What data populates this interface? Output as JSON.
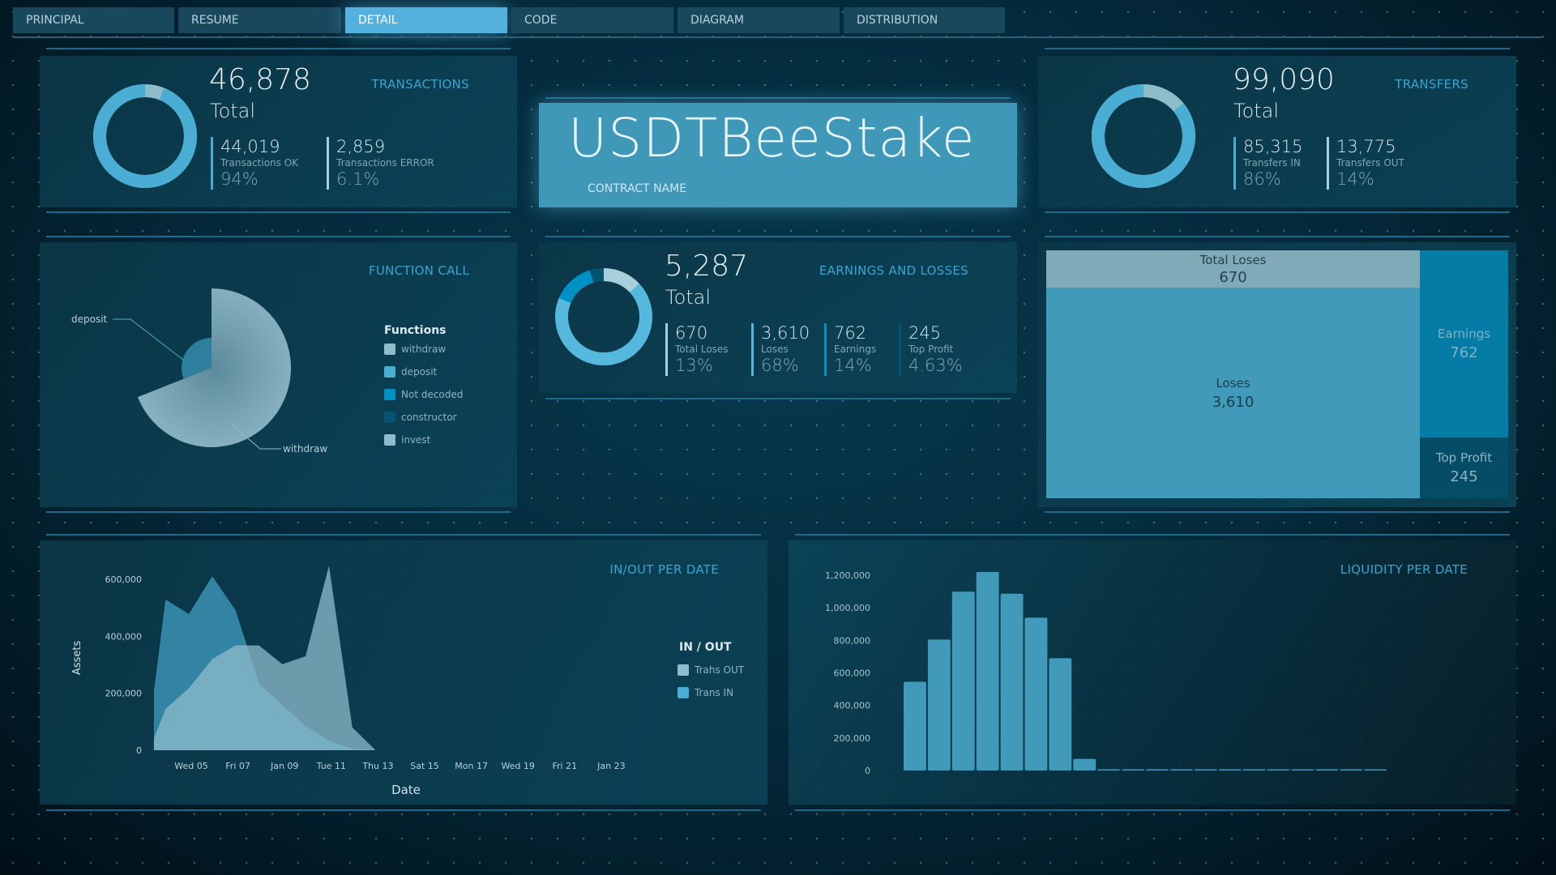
{
  "tabs": [
    {
      "label": "PRINCIPAL"
    },
    {
      "label": "RESUME"
    },
    {
      "label": "DETAIL",
      "active": true
    },
    {
      "label": "CODE"
    },
    {
      "label": "DIAGRAM"
    },
    {
      "label": "DISTRIBUTION"
    }
  ],
  "colors": {
    "accent": "#4aaed4",
    "light": "#8fbccb",
    "mid": "#0091c4",
    "dark": "#05536f",
    "panel": "#0b3a4d"
  },
  "transactions": {
    "title": "TRANSACTIONS",
    "total": "46,878",
    "total_label": "Total",
    "ok": {
      "value": "44,019",
      "label": "Transactions OK",
      "pct": "94%"
    },
    "error": {
      "value": "2,859",
      "label": "Transactions ERROR",
      "pct": "6.1%"
    },
    "ok_fraction": 0.94
  },
  "contract": {
    "name": "USDTBeeStake",
    "label": "CONTRACT NAME"
  },
  "transfers": {
    "title": "TRANSFERS",
    "total": "99,090",
    "total_label": "Total",
    "in": {
      "value": "85,315",
      "label": "Transfers IN",
      "pct": "86%"
    },
    "out": {
      "value": "13,775",
      "label": "Transfers OUT",
      "pct": "14%"
    },
    "in_fraction": 0.86
  },
  "function_call": {
    "title": "FUNCTION CALL",
    "legend_title": "Functions",
    "legend": [
      {
        "label": "withdraw",
        "color": "#8fbccb"
      },
      {
        "label": "deposit",
        "color": "#4aaed4"
      },
      {
        "label": "Not decoded",
        "color": "#0091c4"
      },
      {
        "label": "constructor",
        "color": "#05536f"
      },
      {
        "label": "invest",
        "color": "#8fbccb"
      }
    ],
    "slices": [
      {
        "label": "withdraw",
        "share": 0.69
      },
      {
        "label": "deposit",
        "share": 0.31
      }
    ]
  },
  "earnings": {
    "title": "EARNINGS AND LOSSES",
    "total": "5,287",
    "total_label": "Total",
    "items": [
      {
        "value": "670",
        "label": "Total Loses",
        "pct": "13%",
        "fraction": 0.13,
        "color": "#a7cfdc"
      },
      {
        "value": "3,610",
        "label": "Loses",
        "pct": "68%",
        "fraction": 0.68,
        "color": "#55b8dc"
      },
      {
        "value": "762",
        "label": "Earnings",
        "pct": "14%",
        "fraction": 0.14,
        "color": "#0091c4"
      },
      {
        "value": "245",
        "label": "Top Profit",
        "pct": "4.63%",
        "fraction": 0.0463,
        "color": "#05536f"
      }
    ]
  },
  "treemap": {
    "cells": [
      {
        "label": "Total Loses",
        "value": "670"
      },
      {
        "label": "Loses",
        "value": "3,610"
      },
      {
        "label": "Earnings",
        "value": "762"
      },
      {
        "label": "Top Profit",
        "value": "245"
      }
    ]
  },
  "chart_data": [
    {
      "type": "area",
      "title": "IN/OUT PER DATE",
      "xlabel": "Date",
      "ylabel": "Assets",
      "ylim": [
        0,
        650000
      ],
      "yticks": [
        "0",
        "200,000",
        "400,000",
        "600,000"
      ],
      "xticks": [
        "Wed 05",
        "Fri 07",
        "Jan 09",
        "Tue 11",
        "Thu 13",
        "Sat 15",
        "Mon 17",
        "Wed 19",
        "Fri 21",
        "Jan 23"
      ],
      "legend_title": "IN / OUT",
      "legend": "right",
      "x": [
        "Jan 03 12:00",
        "Jan 04 00:00",
        "Jan 05",
        "Jan 06",
        "Jan 07",
        "Jan 08",
        "Jan 09",
        "Jan 10",
        "Jan 11",
        "Jan 12",
        "Jan 13",
        "Jan 25"
      ],
      "series": [
        {
          "name": "Trahs OUT",
          "color": "#8fbccb",
          "values": [
            40000,
            145000,
            218000,
            320000,
            368000,
            368000,
            302000,
            330000,
            648000,
            80000,
            0,
            0
          ]
        },
        {
          "name": "Trans IN",
          "color": "#4aaed4",
          "values": [
            207000,
            529000,
            478000,
            611000,
            491000,
            233000,
            159000,
            85000,
            33000,
            5000,
            0,
            0
          ]
        }
      ]
    },
    {
      "type": "bar",
      "title": "LIQUIDITY PER DATE",
      "ylim": [
        0,
        1200000
      ],
      "yticks": [
        "0",
        "200,000",
        "400,000",
        "600,000",
        "800,000",
        "1,000,000",
        "1,200,000"
      ],
      "values": [
        545000,
        805000,
        1099000,
        1220000,
        1087000,
        939000,
        690000,
        71000,
        0,
        0,
        0,
        0,
        0,
        0,
        0,
        0,
        0,
        0,
        0,
        0
      ]
    }
  ]
}
